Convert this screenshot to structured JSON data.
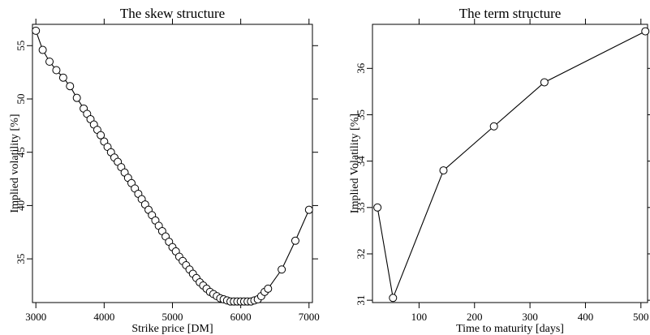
{
  "chart_data": [
    {
      "type": "line",
      "title": "The skew structure",
      "xlabel": "Strike price [DM]",
      "ylabel": "Implied volatility [%]",
      "xlim": [
        2950,
        7050
      ],
      "ylim": [
        30.9,
        57.0
      ],
      "xticks": [
        3000,
        4000,
        5000,
        6000,
        7000
      ],
      "yticks": [
        35,
        40,
        45,
        50,
        55
      ],
      "grid": false,
      "markers": "open-circle",
      "series": [
        {
          "x": [
            3000,
            3100,
            3200,
            3300,
            3400,
            3500,
            3600,
            3700,
            3750,
            3800,
            3850,
            3900,
            3950,
            4000,
            4050,
            4100,
            4150,
            4200,
            4250,
            4300,
            4350,
            4400,
            4450,
            4500,
            4550,
            4600,
            4650,
            4700,
            4750,
            4800,
            4850,
            4900,
            4950,
            5000,
            5050,
            5100,
            5150,
            5200,
            5250,
            5300,
            5350,
            5400,
            5450,
            5500,
            5550,
            5600,
            5650,
            5700,
            5750,
            5800,
            5850,
            5900,
            5950,
            6000,
            6050,
            6100,
            6150,
            6200,
            6250,
            6300,
            6350,
            6400,
            6600,
            6800,
            7000
          ],
          "y": [
            56.4,
            54.6,
            53.5,
            52.7,
            52.0,
            51.2,
            50.1,
            49.1,
            48.6,
            48.1,
            47.6,
            47.1,
            46.6,
            46.0,
            45.5,
            45.0,
            44.5,
            44.1,
            43.6,
            43.1,
            42.6,
            42.1,
            41.6,
            41.1,
            40.6,
            40.1,
            39.6,
            39.1,
            38.6,
            38.1,
            37.6,
            37.1,
            36.6,
            36.1,
            35.7,
            35.2,
            34.8,
            34.4,
            34.0,
            33.6,
            33.2,
            32.8,
            32.5,
            32.2,
            31.9,
            31.7,
            31.5,
            31.3,
            31.2,
            31.1,
            31.0,
            31.0,
            31.0,
            31.0,
            31.0,
            31.0,
            31.0,
            31.1,
            31.2,
            31.5,
            31.9,
            32.2,
            34.0,
            36.7,
            39.6
          ]
        }
      ]
    },
    {
      "type": "line",
      "title": "The term structure",
      "xlabel": "Time to maturity [days]",
      "ylabel": "Implied Volatility [%]",
      "xlim": [
        16,
        512
      ],
      "ylim": [
        30.95,
        36.95
      ],
      "xticks": [
        100,
        200,
        300,
        400,
        500
      ],
      "yticks": [
        31,
        32,
        33,
        34,
        35,
        36
      ],
      "grid": false,
      "markers": "open-circle",
      "series": [
        {
          "x": [
            25,
            53,
            144,
            235,
            326,
            508
          ],
          "y": [
            33.0,
            31.05,
            33.8,
            34.75,
            35.7,
            36.8
          ]
        }
      ]
    }
  ]
}
